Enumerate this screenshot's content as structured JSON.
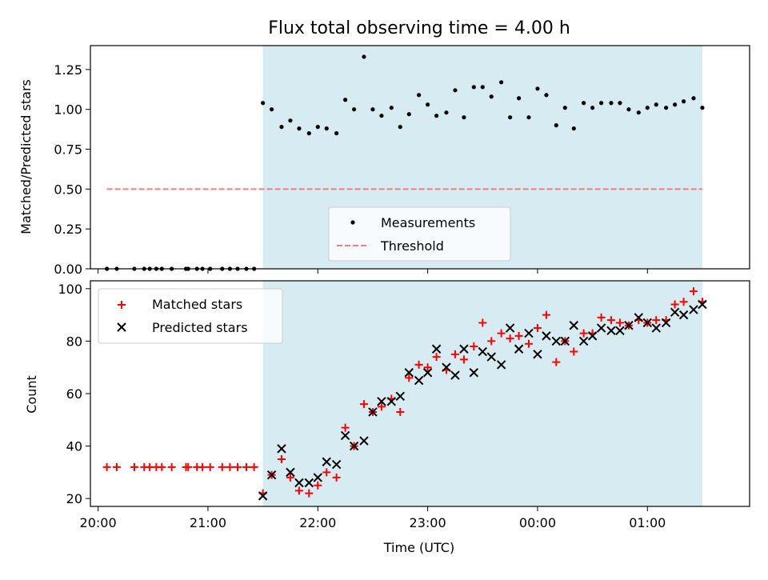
{
  "colors": {
    "shade": "#add8e6",
    "matched": "#ff0000",
    "predicted": "#000000",
    "threshold": "#f08080",
    "measure": "#000000"
  },
  "chart_data": [
    {
      "type": "scatter",
      "title": "Flux total observing time = 4.00 h",
      "xlabel": "",
      "ylabel": "Matched/Predicted stars",
      "xlim": [
        19.93,
        25.93
      ],
      "ylim": [
        0,
        1.4
      ],
      "yticks": [
        0,
        0.25,
        0.5,
        0.75,
        1.0,
        1.25
      ],
      "ytick_labels": [
        "0.00",
        "0.25",
        "0.50",
        "0.75",
        "1.00",
        "1.25"
      ],
      "shaded_span": [
        21.5,
        25.5
      ],
      "threshold": {
        "name": "Threshold",
        "value": 0.5,
        "x_range": [
          20.08,
          25.5
        ]
      },
      "legend_location": "lower-center",
      "series": [
        {
          "name": "Measurements",
          "x": [
            20.08,
            20.17,
            20.33,
            20.42,
            20.47,
            20.53,
            20.58,
            20.67,
            20.8,
            20.82,
            20.9,
            20.95,
            21.02,
            21.13,
            21.2,
            21.27,
            21.35,
            21.42,
            21.5,
            21.58,
            21.67,
            21.75,
            21.83,
            21.92,
            22.0,
            22.08,
            22.17,
            22.25,
            22.33,
            22.42,
            22.5,
            22.58,
            22.67,
            22.75,
            22.83,
            22.92,
            23.0,
            23.08,
            23.17,
            23.25,
            23.33,
            23.42,
            23.5,
            23.58,
            23.67,
            23.75,
            23.83,
            23.92,
            24.0,
            24.08,
            24.17,
            24.25,
            24.33,
            24.42,
            24.5,
            24.58,
            24.67,
            24.75,
            24.83,
            24.92,
            25.0,
            25.08,
            25.17,
            25.25,
            25.33,
            25.42,
            25.5
          ],
          "y": [
            0,
            0,
            0,
            0,
            0,
            0,
            0,
            0,
            0,
            0,
            0,
            0,
            0,
            0,
            0,
            0,
            0,
            0,
            1.04,
            1.0,
            0.89,
            0.93,
            0.88,
            0.85,
            0.89,
            0.88,
            0.85,
            1.06,
            1.0,
            1.33,
            1.0,
            0.96,
            1.01,
            0.89,
            0.97,
            1.09,
            1.03,
            0.96,
            0.98,
            1.12,
            0.95,
            1.14,
            1.14,
            1.08,
            1.17,
            0.95,
            1.07,
            0.95,
            1.13,
            1.09,
            0.9,
            1.01,
            0.88,
            1.04,
            1.01,
            1.04,
            1.04,
            1.04,
            1.0,
            0.98,
            1.01,
            1.03,
            1.01,
            1.03,
            1.05,
            1.07,
            1.01
          ]
        }
      ]
    },
    {
      "type": "scatter",
      "title": "",
      "xlabel": "Time (UTC)",
      "ylabel": "Count",
      "xlim": [
        19.93,
        25.93
      ],
      "ylim": [
        17,
        103
      ],
      "yticks": [
        20,
        40,
        60,
        80,
        100
      ],
      "ytick_labels": [
        "20",
        "40",
        "60",
        "80",
        "100"
      ],
      "xticks": [
        20,
        21,
        22,
        23,
        24,
        25
      ],
      "xtick_labels": [
        "20:00",
        "21:00",
        "22:00",
        "23:00",
        "00:00",
        "01:00"
      ],
      "shaded_span": [
        21.5,
        25.5
      ],
      "legend_location": "top-left",
      "series": [
        {
          "name": "Matched stars",
          "x": [
            20.08,
            20.17,
            20.33,
            20.42,
            20.47,
            20.53,
            20.58,
            20.67,
            20.8,
            20.82,
            20.9,
            20.95,
            21.02,
            21.13,
            21.2,
            21.27,
            21.35,
            21.42,
            21.5,
            21.58,
            21.67,
            21.75,
            21.83,
            21.92,
            22.0,
            22.08,
            22.17,
            22.25,
            22.33,
            22.42,
            22.5,
            22.58,
            22.67,
            22.75,
            22.83,
            22.92,
            23.0,
            23.08,
            23.17,
            23.25,
            23.33,
            23.42,
            23.5,
            23.58,
            23.67,
            23.75,
            23.83,
            23.92,
            24.0,
            24.08,
            24.17,
            24.25,
            24.33,
            24.42,
            24.5,
            24.58,
            24.67,
            24.75,
            24.83,
            24.92,
            25.0,
            25.08,
            25.17,
            25.25,
            25.33,
            25.42,
            25.5
          ],
          "y": [
            32,
            32,
            32,
            32,
            32,
            32,
            32,
            32,
            32,
            32,
            32,
            32,
            32,
            32,
            32,
            32,
            32,
            32,
            22,
            29,
            35,
            28,
            23,
            22,
            25,
            30,
            28,
            47,
            40,
            56,
            53,
            55,
            58,
            53,
            66,
            71,
            70,
            74,
            69,
            75,
            73,
            78,
            87,
            80,
            83,
            81,
            82,
            79,
            85,
            90,
            72,
            80,
            76,
            83,
            83,
            89,
            88,
            87,
            86,
            88,
            87,
            88,
            88,
            94,
            95,
            99,
            95
          ]
        },
        {
          "name": "Predicted stars",
          "x": [
            21.5,
            21.58,
            21.67,
            21.75,
            21.83,
            21.92,
            22.0,
            22.08,
            22.17,
            22.25,
            22.33,
            22.42,
            22.5,
            22.58,
            22.67,
            22.75,
            22.83,
            22.92,
            23.0,
            23.08,
            23.17,
            23.25,
            23.33,
            23.42,
            23.5,
            23.58,
            23.67,
            23.75,
            23.83,
            23.92,
            24.0,
            24.08,
            24.17,
            24.25,
            24.33,
            24.42,
            24.5,
            24.58,
            24.67,
            24.75,
            24.83,
            24.92,
            25.0,
            25.08,
            25.17,
            25.25,
            25.33,
            25.42,
            25.5
          ],
          "y": [
            21,
            29,
            39,
            30,
            26,
            26,
            28,
            34,
            33,
            44,
            40,
            42,
            53,
            57,
            57,
            59,
            68,
            65,
            68,
            77,
            70,
            67,
            77,
            68,
            76,
            74,
            71,
            85,
            77,
            83,
            75,
            82,
            80,
            80,
            86,
            80,
            82,
            85,
            84,
            84,
            86,
            89,
            87,
            85,
            87,
            91,
            90,
            92,
            94
          ]
        }
      ]
    }
  ]
}
